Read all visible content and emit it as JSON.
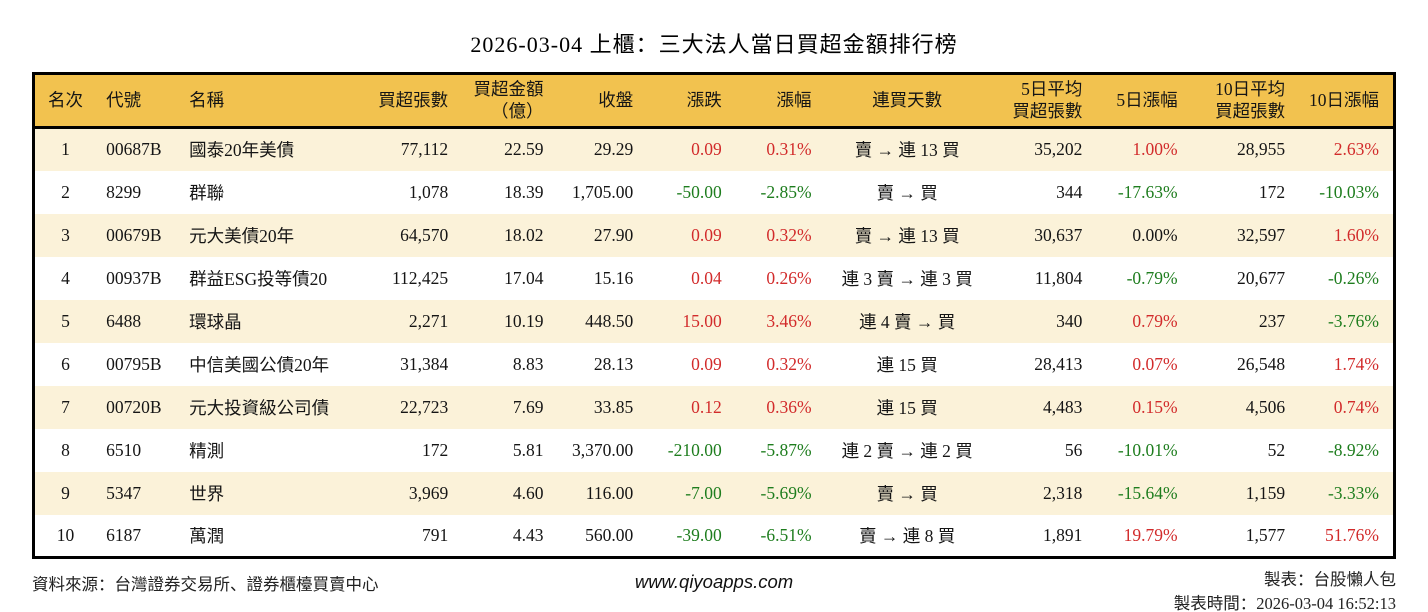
{
  "title": "2026-03-04 上櫃：三大法人當日買超金額排行榜",
  "colors": {
    "positive": "#d22b2b",
    "negative": "#1e7d1e",
    "neutral": "#151515",
    "header_bg": "#f2c24f",
    "row_alt": "#fbf2d9",
    "border": "#000000"
  },
  "table": {
    "columns": [
      {
        "key": "rank",
        "label": "名次",
        "align": "ac",
        "width": "4.6%",
        "colored": false
      },
      {
        "key": "code",
        "label": "代號",
        "align": "al",
        "width": "6.1%",
        "colored": false
      },
      {
        "key": "name",
        "label": "名稱",
        "align": "al",
        "width": "12.6%",
        "colored": false
      },
      {
        "key": "vol",
        "label": "買超張數",
        "align": "ar",
        "width": "8.2%",
        "colored": false
      },
      {
        "key": "amt",
        "label": "買超金額\n（億）",
        "align": "ar",
        "width": "7.0%",
        "colored": false
      },
      {
        "key": "close",
        "label": "收盤",
        "align": "ar",
        "width": "6.6%",
        "colored": false
      },
      {
        "key": "chg",
        "label": "漲跌",
        "align": "ar",
        "width": "6.5%",
        "colored": true
      },
      {
        "key": "chg_pct",
        "label": "漲幅",
        "align": "ar",
        "width": "6.6%",
        "colored": true
      },
      {
        "key": "streak",
        "label": "連買天數",
        "align": "ac",
        "width": "12.0%",
        "colored": false
      },
      {
        "key": "avg5",
        "label": "5日平均\n買超張數",
        "align": "ar",
        "width": "7.9%",
        "colored": false
      },
      {
        "key": "pct5",
        "label": "5日漲幅",
        "align": "ar",
        "width": "7.0%",
        "colored": true
      },
      {
        "key": "avg10",
        "label": "10日平均\n買超張數",
        "align": "ar",
        "width": "7.9%",
        "colored": false
      },
      {
        "key": "pct10",
        "label": "10日漲幅",
        "align": "ar",
        "width": "7.0%",
        "colored": true
      }
    ],
    "rows": [
      {
        "rank": "1",
        "code": "00687B",
        "name": "國泰20年美債",
        "vol": "77,112",
        "amt": "22.59",
        "close": "29.29",
        "chg": "0.09",
        "chg_pct": "0.31%",
        "streak": "賣 → 連 13 買",
        "avg5": "35,202",
        "pct5": "1.00%",
        "avg10": "28,955",
        "pct10": "2.63%"
      },
      {
        "rank": "2",
        "code": "8299",
        "name": "群聯",
        "vol": "1,078",
        "amt": "18.39",
        "close": "1,705.00",
        "chg": "-50.00",
        "chg_pct": "-2.85%",
        "streak": "賣 → 買",
        "avg5": "344",
        "pct5": "-17.63%",
        "avg10": "172",
        "pct10": "-10.03%"
      },
      {
        "rank": "3",
        "code": "00679B",
        "name": "元大美債20年",
        "vol": "64,570",
        "amt": "18.02",
        "close": "27.90",
        "chg": "0.09",
        "chg_pct": "0.32%",
        "streak": "賣 → 連 13 買",
        "avg5": "30,637",
        "pct5": "0.00%",
        "avg10": "32,597",
        "pct10": "1.60%"
      },
      {
        "rank": "4",
        "code": "00937B",
        "name": "群益ESG投等債20",
        "vol": "112,425",
        "amt": "17.04",
        "close": "15.16",
        "chg": "0.04",
        "chg_pct": "0.26%",
        "streak": "連 3 賣 → 連 3 買",
        "avg5": "11,804",
        "pct5": "-0.79%",
        "avg10": "20,677",
        "pct10": "-0.26%"
      },
      {
        "rank": "5",
        "code": "6488",
        "name": "環球晶",
        "vol": "2,271",
        "amt": "10.19",
        "close": "448.50",
        "chg": "15.00",
        "chg_pct": "3.46%",
        "streak": "連 4 賣 → 買",
        "avg5": "340",
        "pct5": "0.79%",
        "avg10": "237",
        "pct10": "-3.76%"
      },
      {
        "rank": "6",
        "code": "00795B",
        "name": "中信美國公債20年",
        "vol": "31,384",
        "amt": "8.83",
        "close": "28.13",
        "chg": "0.09",
        "chg_pct": "0.32%",
        "streak": "連 15 買",
        "avg5": "28,413",
        "pct5": "0.07%",
        "avg10": "26,548",
        "pct10": "1.74%"
      },
      {
        "rank": "7",
        "code": "00720B",
        "name": "元大投資級公司債",
        "vol": "22,723",
        "amt": "7.69",
        "close": "33.85",
        "chg": "0.12",
        "chg_pct": "0.36%",
        "streak": "連 15 買",
        "avg5": "4,483",
        "pct5": "0.15%",
        "avg10": "4,506",
        "pct10": "0.74%"
      },
      {
        "rank": "8",
        "code": "6510",
        "name": "精測",
        "vol": "172",
        "amt": "5.81",
        "close": "3,370.00",
        "chg": "-210.00",
        "chg_pct": "-5.87%",
        "streak": "連 2 賣 → 連 2 買",
        "avg5": "56",
        "pct5": "-10.01%",
        "avg10": "52",
        "pct10": "-8.92%"
      },
      {
        "rank": "9",
        "code": "5347",
        "name": "世界",
        "vol": "3,969",
        "amt": "4.60",
        "close": "116.00",
        "chg": "-7.00",
        "chg_pct": "-5.69%",
        "streak": "賣 → 買",
        "avg5": "2,318",
        "pct5": "-15.64%",
        "avg10": "1,159",
        "pct10": "-3.33%"
      },
      {
        "rank": "10",
        "code": "6187",
        "name": "萬潤",
        "vol": "791",
        "amt": "4.43",
        "close": "560.00",
        "chg": "-39.00",
        "chg_pct": "-6.51%",
        "streak": "賣 → 連 8 買",
        "avg5": "1,891",
        "pct5": "19.79%",
        "avg10": "1,577",
        "pct10": "51.76%"
      }
    ]
  },
  "footer": {
    "source": "資料來源：台灣證券交易所、證券櫃檯買賣中心",
    "website": "www.qiyoapps.com",
    "maker": "製表：台股懶人包",
    "timestamp": "製表時間：2026-03-04 16:52:13"
  }
}
